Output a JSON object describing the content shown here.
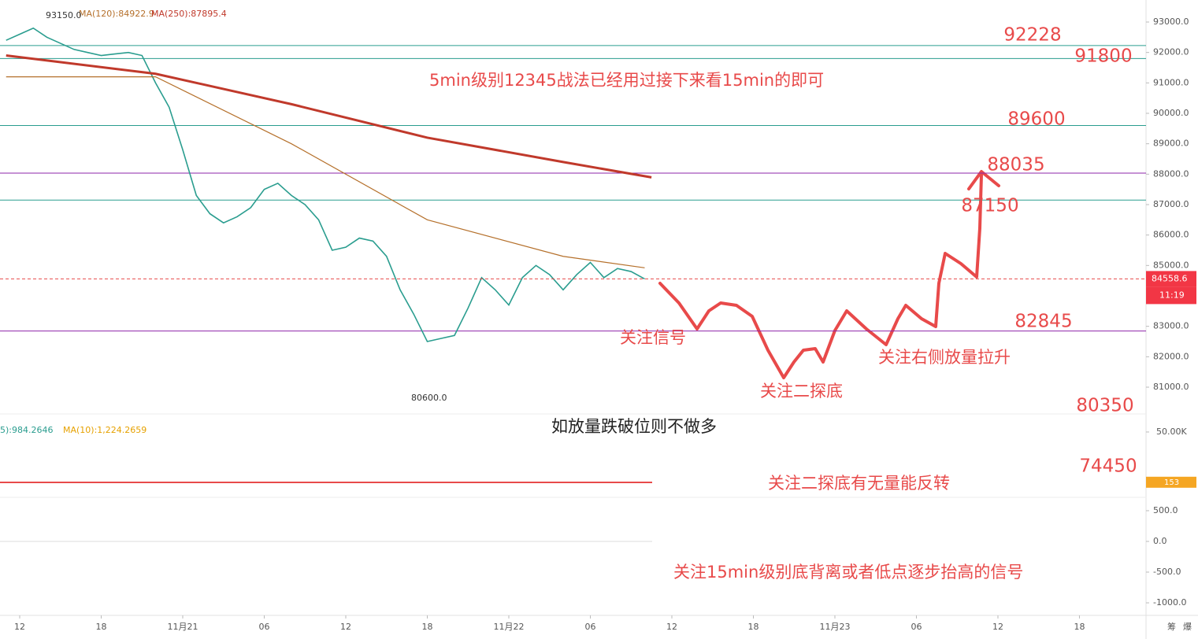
{
  "chart_data": {
    "type": "line",
    "ylim": [
      80276,
      93724
    ],
    "yticks": [
      {
        "value": 81000,
        "label": "81000.0"
      },
      {
        "value": 82000,
        "label": "82000.0"
      },
      {
        "value": 83000,
        "label": "83000.0"
      },
      {
        "value": 84000,
        "label": "84000.0"
      },
      {
        "value": 85000,
        "label": "85000.0"
      },
      {
        "value": 86000,
        "label": "86000.0"
      },
      {
        "value": 87000,
        "label": "87000.0"
      },
      {
        "value": 88000,
        "label": "88000.0"
      },
      {
        "value": 89000,
        "label": "89000.0"
      },
      {
        "value": 90000,
        "label": "90000.0"
      },
      {
        "value": 91000,
        "label": "91000.0"
      },
      {
        "value": 92000,
        "label": "92000.0"
      },
      {
        "value": 93000,
        "label": "93000.0"
      }
    ],
    "xlim": [
      -1.45,
      82.9
    ],
    "xticks": [
      {
        "value": 0,
        "label": "12"
      },
      {
        "value": 6,
        "label": "18"
      },
      {
        "value": 12,
        "label": "11月21"
      },
      {
        "value": 18,
        "label": "06"
      },
      {
        "value": 24,
        "label": "12"
      },
      {
        "value": 30,
        "label": "18"
      },
      {
        "value": 36,
        "label": "11月22"
      },
      {
        "value": 42,
        "label": "06"
      },
      {
        "value": 48,
        "label": "12"
      },
      {
        "value": 54,
        "label": "18"
      },
      {
        "value": 60,
        "label": "11月23"
      },
      {
        "value": 66,
        "label": "06"
      },
      {
        "value": 72,
        "label": "12"
      },
      {
        "value": 78,
        "label": "18"
      }
    ],
    "series": [
      {
        "color": "#2a9d8f",
        "x": [
          -1,
          0,
          1,
          2,
          3,
          4,
          5,
          6,
          7,
          8,
          9,
          10,
          11,
          12,
          13,
          14,
          15,
          16,
          17,
          18,
          19,
          20,
          21,
          22,
          23,
          24,
          25,
          26,
          27,
          28,
          29,
          30,
          31,
          32,
          33,
          34,
          35,
          36,
          37,
          38,
          39,
          40,
          41,
          42,
          43,
          44,
          45,
          46
        ],
        "values": [
          92400,
          92600,
          92800,
          92500,
          92300,
          92100,
          92000,
          91900,
          91950,
          92000,
          91900,
          91000,
          90200,
          88800,
          87300,
          86700,
          86400,
          86600,
          86900,
          87500,
          87700,
          87300,
          87000,
          86500,
          85500,
          85600,
          85900,
          85800,
          85300,
          84200,
          83400,
          82500,
          82600,
          82700,
          83600,
          84600,
          84200,
          83700,
          84600,
          85000,
          84700,
          84200,
          84700,
          85100,
          84600,
          84900,
          84800,
          84558.6
        ]
      },
      {
        "name": "MA(120):84922.9",
        "color": "#b5702b",
        "x": [
          -1,
          10,
          20,
          30,
          40,
          46
        ],
        "values": [
          91200,
          91200,
          89000,
          86500,
          85300,
          84922.9
        ]
      },
      {
        "name": "MA(250):87895.4",
        "color": "#c0392b",
        "x": [
          -1,
          10,
          20,
          30,
          40,
          46.5
        ],
        "values": [
          91900,
          91300,
          90300,
          89200,
          88400,
          87895.4
        ]
      }
    ],
    "high_label": "93150.0",
    "low_label": "80600.0",
    "current_price": 84558.6,
    "countdown": "11:19",
    "levels": [
      {
        "value": 92228,
        "color": "#2a9d8f"
      },
      {
        "value": 91800,
        "color": "#2a9d8f"
      },
      {
        "value": 89600,
        "color": "#2a9d8f"
      },
      {
        "value": 88035,
        "color": "#8e24aa"
      },
      {
        "value": 87150,
        "color": "#2a9d8f"
      },
      {
        "value": 82845,
        "color": "#8e24aa"
      }
    ],
    "extra_levels": [
      80350,
      74450
    ],
    "annotations": [
      {
        "text": "5min级别12345战法已经用过接下来看15min的即可",
        "color": "#e84a4a"
      },
      {
        "text": "关注信号",
        "color": "#e84a4a"
      },
      {
        "text": "关注二探底",
        "color": "#e84a4a"
      },
      {
        "text": "关注右侧放量拉升",
        "color": "#e84a4a"
      },
      {
        "text": "如放量跌破位则不做多",
        "color": "#222222"
      },
      {
        "text": "关注二探底有无量能反转",
        "color": "#e84a4a"
      },
      {
        "text": "关注15min级别底背离或者低点逐步抬高的信号",
        "color": "#e84a4a"
      }
    ],
    "volume_legend": [
      "5):984.2646",
      "MA(10):1,224.2659"
    ],
    "volume_ylim": [
      0,
      64800
    ],
    "volume_ticks": [
      {
        "value": 50000,
        "label": "50.00K"
      }
    ],
    "volume_current": 153,
    "macd_ylim": [
      -1179,
      679
    ],
    "macd_ticks": [
      {
        "value": 500,
        "label": "500.0"
      },
      {
        "value": 0,
        "label": "0.0"
      },
      {
        "value": -500,
        "label": "-500.0"
      },
      {
        "value": -1000,
        "label": "-1000.0"
      }
    ],
    "corner": [
      "筹",
      "爆"
    ]
  }
}
